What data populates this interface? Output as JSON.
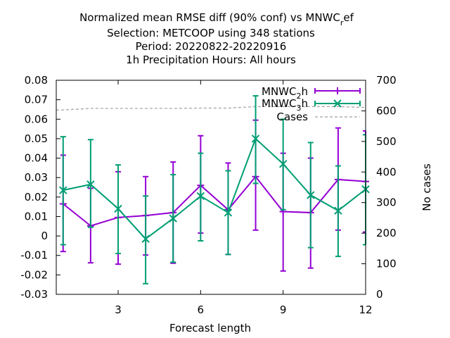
{
  "chart_data": {
    "type": "line",
    "title_lines": [
      "Normalized mean RMSE diff (90% conf) vs MNWC",
      "Selection: METCOOP using   348 stations",
      "Period: 20220822-20220916",
      "1h Precipitation   Hours:  All hours"
    ],
    "title_sub": "r",
    "title_tail": "ef",
    "xlabel": "Forecast length",
    "ylabel_right": "No cases",
    "xlim": [
      0.75,
      12
    ],
    "ylim_left": [
      -0.03,
      0.08
    ],
    "ylim_right": [
      0,
      700
    ],
    "xticks": [
      "3",
      "6",
      "9",
      "12"
    ],
    "yticks_left": [
      "0.08",
      "0.07",
      "0.06",
      "0.05",
      "0.04",
      "0.03",
      "0.02",
      "0.01",
      "0",
      "-0.01",
      "-0.02",
      "-0.03"
    ],
    "yticks_right": [
      "700",
      "600",
      "500",
      "400",
      "300",
      "200",
      "100",
      "0"
    ],
    "legend_position": "top-right",
    "series": [
      {
        "name": "MNWC",
        "name_sub": "2",
        "name_tail": "h",
        "color": "#9400d3",
        "marker": "plus",
        "x": [
          1,
          2,
          3,
          4,
          5,
          6,
          7,
          8,
          9,
          10,
          11,
          12
        ],
        "y": [
          0.0165,
          0.0052,
          0.0095,
          0.0105,
          0.012,
          0.026,
          0.0135,
          0.0305,
          0.0125,
          0.012,
          0.029,
          0.028
        ],
        "err_low": [
          -0.008,
          -0.0138,
          -0.0145,
          -0.0098,
          -0.014,
          0.0015,
          -0.0095,
          0.003,
          -0.018,
          -0.0165,
          0.003,
          0.002
        ],
        "err_high": [
          0.0415,
          0.0245,
          0.033,
          0.0305,
          0.038,
          0.0515,
          0.0375,
          0.0595,
          0.0425,
          0.04,
          0.0555,
          0.054
        ]
      },
      {
        "name": "MNWC",
        "name_sub": "3",
        "name_tail": "h",
        "color": "#009e73",
        "marker": "cross",
        "x": [
          1,
          2,
          3,
          4,
          5,
          6,
          7,
          8,
          9,
          10,
          11,
          12
        ],
        "y": [
          0.0235,
          0.0265,
          0.014,
          -0.0015,
          0.009,
          0.0205,
          0.012,
          0.05,
          0.037,
          0.021,
          0.013,
          0.024
        ],
        "err_low": [
          -0.0045,
          0.0045,
          -0.009,
          -0.0245,
          -0.0135,
          -0.0025,
          -0.0095,
          0.027,
          0.0135,
          -0.006,
          -0.0105,
          -0.0045
        ],
        "err_high": [
          0.051,
          0.0495,
          0.0365,
          0.0205,
          0.0315,
          0.0425,
          0.0335,
          0.072,
          0.06,
          0.048,
          0.036,
          0.052
        ]
      },
      {
        "name": "Cases",
        "color": "#a0a0a0",
        "axis": "right",
        "dashed": true,
        "x": [
          0.75,
          1,
          2,
          3,
          4,
          5,
          6,
          7,
          8,
          9,
          10,
          11,
          12
        ],
        "y": [
          603,
          603,
          608,
          608,
          608,
          608,
          609,
          609,
          614,
          614,
          614,
          614,
          611
        ]
      }
    ]
  }
}
